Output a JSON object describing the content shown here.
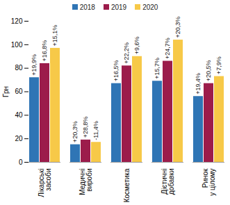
{
  "chart_data": {
    "type": "bar",
    "y_label": "Грн",
    "categories": [
      "Лікарські\nзасоби",
      "Медичні\nвироби",
      "Косметика",
      "Дієтичні\nдобавки",
      "Ринок\nу цілому"
    ],
    "series": [
      {
        "name": "2018",
        "color": "#2f75b5",
        "values": [
          72,
          15,
          67,
          69,
          56
        ],
        "annotations": [
          "+19,9%",
          "+20,3%",
          "+16,5%",
          "+15,7%",
          "+19,4%"
        ]
      },
      {
        "name": "2019",
        "color": "#9c1c4b",
        "values": [
          84,
          19,
          82,
          86,
          67
        ],
        "annotations": [
          "+16,8%",
          "+28,8%",
          "+22,2%",
          "+24,7%",
          "+20,5%"
        ]
      },
      {
        "name": "2020",
        "color": "#f7c948",
        "values": [
          97,
          17,
          90,
          104,
          73
        ],
        "annotations": [
          "+15,1%",
          "-11,4%",
          "+9,6%",
          "+20,3%",
          "+7,9%"
        ]
      }
    ],
    "ylim": [
      0,
      120
    ],
    "yticks": [
      0,
      20,
      40,
      60,
      80,
      100,
      120
    ],
    "legend": "top",
    "grid": false
  }
}
